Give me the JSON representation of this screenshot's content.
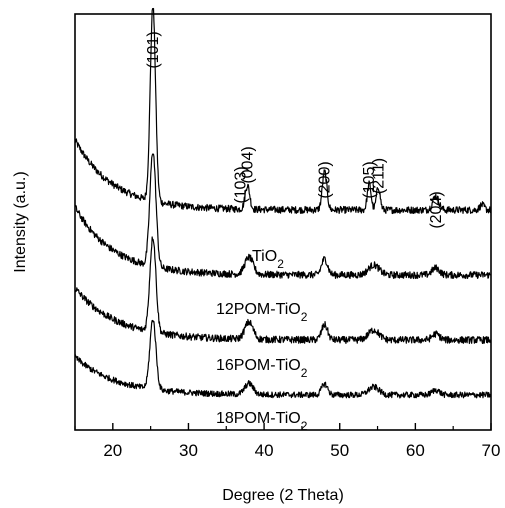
{
  "chart_data": {
    "type": "line",
    "title": "",
    "xlabel": "Degree (2 Theta)",
    "ylabel": "Intensity (a.u.)",
    "xlim": [
      15,
      70
    ],
    "xticks": [
      20,
      30,
      40,
      50,
      60,
      70
    ],
    "y_tick_labels": false,
    "grid": false,
    "legend": "inline labels below each trace",
    "peak_labels": [
      {
        "text": "(101)",
        "x": 25.3
      },
      {
        "text": "(103)",
        "x": 36.9
      },
      {
        "text": "(004)",
        "x": 37.8
      },
      {
        "text": "(200)",
        "x": 48.0
      },
      {
        "text": "(105)",
        "x": 53.9
      },
      {
        "text": "(211)",
        "x": 55.1
      },
      {
        "text": "(204)",
        "x": 62.7
      }
    ],
    "series": [
      {
        "name": "TiO",
        "name_sub": "2",
        "baseline": 2.2,
        "background": {
          "start": 0.7,
          "decay": 5.0
        },
        "peaks": [
          [
            25.3,
            1.95,
            0.35
          ],
          [
            37.8,
            0.24,
            0.3
          ],
          [
            48.0,
            0.38,
            0.3
          ],
          [
            53.9,
            0.26,
            0.25
          ],
          [
            55.1,
            0.23,
            0.25
          ],
          [
            62.7,
            0.14,
            0.4
          ],
          [
            68.8,
            0.05,
            0.3
          ]
        ],
        "noise": 0.035
      },
      {
        "name": "12POM-TiO",
        "name_sub": "2",
        "baseline": 1.55,
        "background": {
          "start": 0.68,
          "decay": 5.0
        },
        "peaks": [
          [
            25.3,
            1.15,
            0.4
          ],
          [
            38.0,
            0.17,
            0.55
          ],
          [
            48.0,
            0.16,
            0.4
          ],
          [
            54.5,
            0.1,
            0.7
          ],
          [
            62.7,
            0.07,
            0.5
          ]
        ],
        "noise": 0.035
      },
      {
        "name": "16POM-TiO",
        "name_sub": "2",
        "baseline": 0.9,
        "background": {
          "start": 0.52,
          "decay": 5.5
        },
        "peaks": [
          [
            25.3,
            0.95,
            0.4
          ],
          [
            38.0,
            0.17,
            0.55
          ],
          [
            48.0,
            0.15,
            0.4
          ],
          [
            54.5,
            0.1,
            0.7
          ],
          [
            62.7,
            0.06,
            0.5
          ]
        ],
        "noise": 0.035
      },
      {
        "name": "18POM-TiO",
        "name_sub": "2",
        "baseline": 0.35,
        "background": {
          "start": 0.38,
          "decay": 5.5
        },
        "peaks": [
          [
            25.3,
            0.7,
            0.4
          ],
          [
            38.0,
            0.11,
            0.55
          ],
          [
            48.0,
            0.11,
            0.4
          ],
          [
            54.5,
            0.08,
            0.7
          ],
          [
            62.7,
            0.05,
            0.5
          ]
        ],
        "noise": 0.03
      }
    ]
  }
}
